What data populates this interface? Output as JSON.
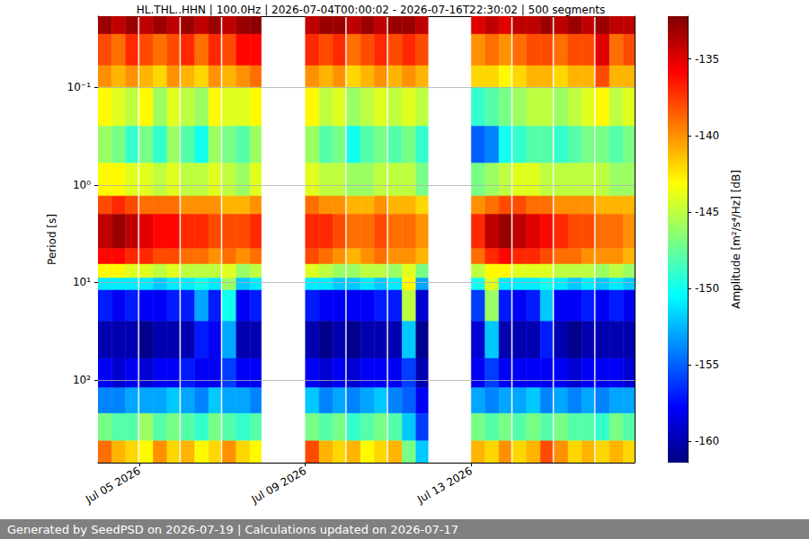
{
  "chart_data": {
    "type": "heatmap",
    "title": "HL.THL..HHN | 100.0Hz | 2026-07-04T00:00:02 - 2026-07-16T22:30:02 | 500 segments",
    "ylabel": "Period [s]",
    "footer": "Generated by SeedPSD on 2026-07-19 | Calculations updated on 2026-07-17",
    "log": "y",
    "grid": true,
    "xlim": [
      "2026-07-04T00:00:02",
      "2026-07-16T22:30:02"
    ],
    "xticks": [
      {
        "value": "2026-07-05T00:00:00",
        "label": "Jul 05 2026"
      },
      {
        "value": "2026-07-09T00:00:00",
        "label": "Jul 09 2026"
      },
      {
        "value": "2026-07-13T00:00:00",
        "label": "Jul 13 2026"
      }
    ],
    "ylim": [
      0.0187,
      702
    ],
    "yticks": [
      {
        "value": 0.1,
        "label": "10⁻¹"
      },
      {
        "value": 1,
        "label": "10⁰"
      },
      {
        "value": 10,
        "label": "10¹"
      },
      {
        "value": 100,
        "label": "10²"
      }
    ],
    "time_bins": [
      [
        "2026-07-04T00:00:02",
        "2026-07-04T08:00:00"
      ],
      [
        "2026-07-04T08:00:00",
        "2026-07-04T16:00:00"
      ],
      [
        "2026-07-04T16:00:00",
        "2026-07-04T23:00:00"
      ],
      [
        "2026-07-05T00:00:00",
        "2026-07-05T08:00:00"
      ],
      [
        "2026-07-05T08:00:00",
        "2026-07-05T16:00:00"
      ],
      [
        "2026-07-05T16:00:00",
        "2026-07-05T23:00:00"
      ],
      [
        "2026-07-06T00:00:00",
        "2026-07-06T08:00:00"
      ],
      [
        "2026-07-06T08:00:00",
        "2026-07-06T16:00:00"
      ],
      [
        "2026-07-06T16:00:00",
        "2026-07-06T23:00:00"
      ],
      [
        "2026-07-07T00:00:00",
        "2026-07-07T08:00:00"
      ],
      [
        "2026-07-07T08:00:00",
        "2026-07-07T16:00:00"
      ],
      [
        "2026-07-07T16:00:00",
        "2026-07-07T22:30:00"
      ],
      [
        "2026-07-09T00:00:00",
        "2026-07-09T08:00:00"
      ],
      [
        "2026-07-09T08:00:00",
        "2026-07-09T16:00:00"
      ],
      [
        "2026-07-09T16:00:00",
        "2026-07-09T23:00:00"
      ],
      [
        "2026-07-10T00:00:00",
        "2026-07-10T08:00:00"
      ],
      [
        "2026-07-10T08:00:00",
        "2026-07-10T16:00:00"
      ],
      [
        "2026-07-10T16:00:00",
        "2026-07-10T23:00:00"
      ],
      [
        "2026-07-11T00:00:00",
        "2026-07-11T08:00:00"
      ],
      [
        "2026-07-11T08:00:00",
        "2026-07-11T16:00:00"
      ],
      [
        "2026-07-11T16:00:00",
        "2026-07-11T23:00:00"
      ],
      [
        "2026-07-13T00:00:00",
        "2026-07-13T08:00:00"
      ],
      [
        "2026-07-13T08:00:00",
        "2026-07-13T16:00:00"
      ],
      [
        "2026-07-13T16:00:00",
        "2026-07-13T23:00:00"
      ],
      [
        "2026-07-14T00:00:00",
        "2026-07-14T08:00:00"
      ],
      [
        "2026-07-14T08:00:00",
        "2026-07-14T16:00:00"
      ],
      [
        "2026-07-14T16:00:00",
        "2026-07-14T23:00:00"
      ],
      [
        "2026-07-15T00:00:00",
        "2026-07-15T08:00:00"
      ],
      [
        "2026-07-15T08:00:00",
        "2026-07-15T16:00:00"
      ],
      [
        "2026-07-15T16:00:00",
        "2026-07-15T23:00:00"
      ],
      [
        "2026-07-16T00:00:00",
        "2026-07-16T08:00:00"
      ],
      [
        "2026-07-16T08:00:00",
        "2026-07-16T16:00:00"
      ],
      [
        "2026-07-16T16:00:00",
        "2026-07-16T22:30:02"
      ]
    ],
    "period_bins": [
      0.0187,
      0.0286,
      0.06,
      0.1,
      0.25,
      0.6,
      1.3,
      2,
      4.5,
      6.5,
      9,
      12,
      25,
      60,
      120,
      220,
      420,
      702
    ],
    "amplitude": [
      [
        -133,
        -138,
        -140,
        -143,
        -146,
        -143,
        -138,
        -134,
        -136,
        -143,
        -151,
        -157,
        -160,
        -158,
        -154,
        -147,
        -139
      ],
      [
        -134,
        -139,
        -141,
        -144,
        -147,
        -143,
        -137,
        -133,
        -136,
        -143,
        -151,
        -158,
        -160,
        -159,
        -154,
        -148,
        -141
      ],
      [
        -133,
        -137,
        -140,
        -145,
        -149,
        -144,
        -138,
        -134,
        -137,
        -144,
        -151,
        -157,
        -160,
        -158,
        -153,
        -148,
        -142
      ],
      [
        -134,
        -138,
        -141,
        -143,
        -147,
        -144,
        -139,
        -135,
        -137,
        -144,
        -151,
        -158,
        -161,
        -159,
        -153,
        -146,
        -143
      ],
      [
        -133,
        -139,
        -142,
        -146,
        -149,
        -145,
        -139,
        -136,
        -138,
        -145,
        -152,
        -158,
        -160,
        -158,
        -153,
        -148,
        -140
      ],
      [
        -134,
        -138,
        -140,
        -144,
        -146,
        -144,
        -139,
        -136,
        -138,
        -144,
        -151,
        -157,
        -160,
        -158,
        -152,
        -147,
        -142
      ],
      [
        -133,
        -137,
        -141,
        -145,
        -148,
        -145,
        -140,
        -137,
        -139,
        -145,
        -151,
        -157,
        -160,
        -157,
        -153,
        -148,
        -141
      ],
      [
        -134,
        -139,
        -142,
        -146,
        -150,
        -145,
        -140,
        -137,
        -139,
        -145,
        -150,
        -153,
        -157,
        -158,
        -154,
        -149,
        -143
      ],
      [
        -133,
        -137,
        -140,
        -143,
        -146,
        -144,
        -140,
        -138,
        -140,
        -145,
        -151,
        -157,
        -158,
        -158,
        -152,
        -147,
        -142
      ],
      [
        -134,
        -138,
        -141,
        -144,
        -147,
        -145,
        -141,
        -138,
        -139,
        -144,
        -146,
        -150,
        -153,
        -156,
        -153,
        -148,
        -140
      ],
      [
        -133,
        -136,
        -140,
        -144,
        -148,
        -146,
        -141,
        -138,
        -140,
        -146,
        -152,
        -158,
        -160,
        -158,
        -153,
        -149,
        -142
      ],
      [
        -132.5,
        -136,
        -139,
        -143,
        -146,
        -144,
        -140,
        -137,
        -139,
        -145,
        -151,
        -157,
        -160,
        -158,
        -154,
        -148,
        -143
      ],
      [
        -134,
        -137,
        -140,
        -143,
        -146,
        -144,
        -139,
        -137,
        -138,
        -144,
        -151,
        -157,
        -160,
        -158,
        -152,
        -147,
        -138
      ],
      [
        -133,
        -138,
        -141,
        -145,
        -148,
        -145,
        -140,
        -137,
        -139,
        -145,
        -151,
        -158,
        -161,
        -159,
        -154,
        -148,
        -141
      ],
      [
        -133,
        -137,
        -140,
        -144,
        -147,
        -145,
        -140,
        -138,
        -140,
        -146,
        -152,
        -158,
        -160,
        -158,
        -153,
        -147,
        -142
      ],
      [
        -134,
        -139,
        -142,
        -146,
        -150,
        -146,
        -141,
        -139,
        -141,
        -146,
        -152,
        -158,
        -161,
        -159,
        -154,
        -149,
        -141
      ],
      [
        -133,
        -138,
        -141,
        -145,
        -148,
        -146,
        -141,
        -139,
        -140,
        -145,
        -151,
        -158,
        -160,
        -158,
        -153,
        -148,
        -143
      ],
      [
        -134,
        -137,
        -140,
        -144,
        -147,
        -145,
        -140,
        -138,
        -139,
        -145,
        -152,
        -157,
        -160,
        -158,
        -152,
        -147,
        -142
      ],
      [
        -133,
        -138,
        -141,
        -145,
        -148,
        -145,
        -141,
        -139,
        -140,
        -146,
        -151,
        -157,
        -160,
        -158,
        -154,
        -148,
        -141
      ],
      [
        -133,
        -137,
        -140,
        -144,
        -147,
        -145,
        -141,
        -139,
        -140,
        -144,
        -143,
        -145,
        -152,
        -156,
        -155,
        -152,
        -147
      ],
      [
        -134,
        -138,
        -141,
        -145,
        -149,
        -147,
        -142,
        -140,
        -141,
        -147,
        -153,
        -159,
        -161,
        -160,
        -158,
        -156,
        -152
      ],
      [
        -135,
        -140,
        -142,
        -149,
        -155,
        -147,
        -140,
        -137,
        -139,
        -145,
        -150,
        -156,
        -159,
        -158,
        -153,
        -147,
        -141
      ],
      [
        -134,
        -139,
        -142,
        -148,
        -154,
        -146,
        -139,
        -134,
        -137,
        -143,
        -144,
        -146,
        -152,
        -156,
        -154,
        -148,
        -142
      ],
      [
        -135,
        -140,
        -143,
        -147,
        -150,
        -145,
        -138,
        -133,
        -136,
        -143,
        -151,
        -157,
        -160,
        -158,
        -153,
        -147,
        -140
      ],
      [
        -134,
        -139,
        -142,
        -146,
        -149,
        -144,
        -138,
        -134,
        -137,
        -144,
        -151,
        -158,
        -160,
        -158,
        -153,
        -148,
        -142
      ],
      [
        -134,
        -138,
        -141,
        -145,
        -148,
        -144,
        -139,
        -135,
        -137,
        -144,
        -151,
        -157,
        -160,
        -158,
        -152,
        -147,
        -141
      ],
      [
        -133,
        -138,
        -141,
        -145,
        -148,
        -145,
        -139,
        -136,
        -138,
        -144,
        -150,
        -152,
        -157,
        -158,
        -154,
        -148,
        -138
      ],
      [
        -134,
        -139,
        -142,
        -146,
        -149,
        -145,
        -140,
        -137,
        -139,
        -145,
        -151,
        -158,
        -160,
        -158,
        -153,
        -147,
        -140
      ],
      [
        -133,
        -138,
        -141,
        -145,
        -148,
        -145,
        -140,
        -138,
        -139,
        -145,
        -152,
        -158,
        -161,
        -159,
        -154,
        -148,
        -142
      ],
      [
        -134,
        -138,
        -141,
        -144,
        -147,
        -145,
        -140,
        -138,
        -140,
        -145,
        -151,
        -157,
        -160,
        -158,
        -153,
        -148,
        -141
      ],
      [
        -133,
        -135,
        -138,
        -143,
        -147,
        -145,
        -141,
        -139,
        -140,
        -146,
        -152,
        -158,
        -160,
        -158,
        -154,
        -149,
        -142
      ],
      [
        -134,
        -139,
        -141,
        -145,
        -148,
        -146,
        -141,
        -139,
        -140,
        -145,
        -151,
        -157,
        -160,
        -158,
        -153,
        -147,
        -141
      ],
      [
        -134,
        -138,
        -141,
        -144,
        -147,
        -146,
        -141,
        -140,
        -141,
        -146,
        -152,
        -158,
        -160,
        -159,
        -153,
        -148,
        -142
      ]
    ],
    "colorbar": {
      "label": "Amplitude [m²/s⁴/Hz] [dB]",
      "lim": [
        -161.4,
        -132.2
      ],
      "ticks": [
        -160,
        -155,
        -150,
        -145,
        -140,
        -135
      ],
      "colors": [
        "#00007f",
        "#0000ff",
        "#007fff",
        "#00ffff",
        "#7fff7f",
        "#ffff00",
        "#ff7f00",
        "#ff0000",
        "#7f0000"
      ]
    }
  }
}
